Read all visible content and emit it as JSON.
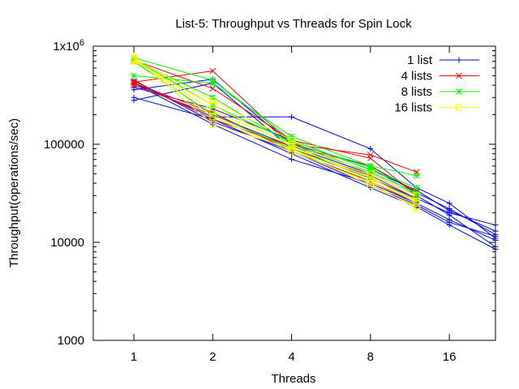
{
  "chart_data": {
    "type": "line",
    "title": "List-5: Throughput vs Threads for Spin Lock",
    "xlabel": "Threads",
    "ylabel": "Throughput(operations/sec)",
    "x_scale": "log2",
    "y_scale": "log10",
    "xlim": [
      0.7,
      24
    ],
    "ylim": [
      1000,
      1000000
    ],
    "x_ticks": [
      {
        "value": 1,
        "label": "1"
      },
      {
        "value": 2,
        "label": "2"
      },
      {
        "value": 4,
        "label": "4"
      },
      {
        "value": 8,
        "label": "8"
      },
      {
        "value": 16,
        "label": "16"
      }
    ],
    "y_ticks": [
      {
        "value": 1000,
        "label": "1000"
      },
      {
        "value": 10000,
        "label": "10000"
      },
      {
        "value": 100000,
        "label": "100000"
      },
      {
        "value": 1000000,
        "label": "1x10",
        "sup": "6"
      }
    ],
    "grid": false,
    "legend_position": "top-right",
    "series": [
      {
        "name": "1 list",
        "color": "#0000ff",
        "marker": "plus",
        "segments": [
          {
            "x": [
              1,
              2,
              4,
              8,
              12,
              16,
              24
            ],
            "y": [
              420000,
              190000,
              190000,
              90000,
              36000,
              25000,
              11000
            ]
          },
          {
            "x": [
              1,
              2,
              4,
              8,
              12,
              16,
              24
            ],
            "y": [
              360000,
              460000,
              100000,
              60000,
              32000,
              22000,
              12000
            ]
          },
          {
            "x": [
              1,
              2,
              4,
              8,
              12,
              16,
              24
            ],
            "y": [
              280000,
              420000,
              90000,
              45000,
              28000,
              20000,
              15000
            ]
          },
          {
            "x": [
              1,
              2,
              4,
              8,
              12,
              16,
              24
            ],
            "y": [
              420000,
              160000,
              70000,
              40000,
              25000,
              17000,
              10500
            ]
          },
          {
            "x": [
              1,
              2,
              4,
              8,
              12,
              16,
              24
            ],
            "y": [
              700000,
              200000,
              95000,
              50000,
              30000,
              19000,
              9000
            ]
          },
          {
            "x": [
              1,
              2,
              4,
              8,
              12,
              16,
              24
            ],
            "y": [
              380000,
              230000,
              110000,
              55000,
              34000,
              21000,
              13000
            ]
          },
          {
            "x": [
              1,
              2,
              4,
              8,
              12,
              16,
              24
            ],
            "y": [
              450000,
              170000,
              85000,
              38000,
              24000,
              16000,
              11500
            ]
          },
          {
            "x": [
              1,
              2,
              4,
              8,
              12,
              16,
              24
            ],
            "y": [
              300000,
              180000,
              80000,
              36000,
              23000,
              15000,
              8500
            ]
          }
        ]
      },
      {
        "name": "4 lists",
        "color": "#ff0000",
        "marker": "cross",
        "segments": [
          {
            "x": [
              1,
              2,
              4,
              8,
              12
            ],
            "y": [
              430000,
              560000,
              100000,
              78000,
              52000
            ]
          },
          {
            "x": [
              1,
              2,
              4,
              8,
              12
            ],
            "y": [
              720000,
              370000,
              110000,
              72000,
              30000
            ]
          },
          {
            "x": [
              1,
              2,
              4,
              8,
              12
            ],
            "y": [
              400000,
              200000,
              90000,
              48000,
              28000
            ]
          },
          {
            "x": [
              1,
              2,
              4,
              8,
              12
            ],
            "y": [
              440000,
              180000,
              95000,
              60000,
              33000
            ]
          },
          {
            "x": [
              1,
              2,
              4,
              8,
              12
            ],
            "y": [
              420000,
              210000,
              85000,
              42000,
              25000
            ]
          }
        ]
      },
      {
        "name": "8 lists",
        "color": "#00ff00",
        "marker": "star",
        "segments": [
          {
            "x": [
              1,
              2,
              4,
              8,
              12
            ],
            "y": [
              500000,
              420000,
              120000,
              60000,
              48000
            ]
          },
          {
            "x": [
              1,
              2,
              4,
              8,
              12
            ],
            "y": [
              760000,
              450000,
              110000,
              55000,
              36000
            ]
          },
          {
            "x": [
              1,
              2,
              4,
              8,
              12
            ],
            "y": [
              720000,
              300000,
              100000,
              52000,
              32000
            ]
          },
          {
            "x": [
              1,
              2,
              4,
              8,
              12
            ],
            "y": [
              740000,
              250000,
              105000,
              58000,
              30000
            ]
          },
          {
            "x": [
              1,
              2,
              4,
              8,
              12
            ],
            "y": [
              700000,
              200000,
              90000,
              45000,
              27000
            ]
          }
        ]
      },
      {
        "name": "16 lists",
        "color": "#ffff00",
        "marker": "square",
        "segments": [
          {
            "x": [
              1,
              2,
              4,
              8,
              12
            ],
            "y": [
              740000,
              280000,
              110000,
              50000,
              30000
            ]
          },
          {
            "x": [
              1,
              2,
              4,
              8,
              12
            ],
            "y": [
              720000,
              220000,
              100000,
              42000,
              26000
            ]
          },
          {
            "x": [
              1,
              2,
              4,
              8,
              12
            ],
            "y": [
              760000,
              160000,
              90000,
              38000,
              23000
            ]
          },
          {
            "x": [
              1,
              2,
              4,
              8,
              12
            ],
            "y": [
              700000,
              250000,
              95000,
              46000,
              25000
            ]
          },
          {
            "x": [
              1,
              2,
              4,
              8,
              12
            ],
            "y": [
              730000,
              190000,
              85000,
              40000,
              22000
            ]
          }
        ]
      }
    ]
  }
}
